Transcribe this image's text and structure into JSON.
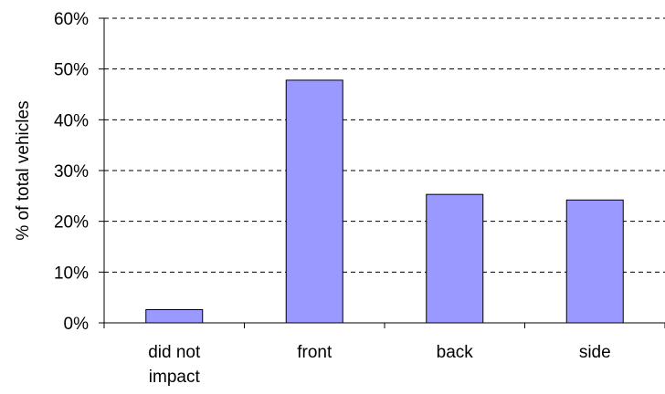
{
  "chart_data": {
    "type": "bar",
    "title": "",
    "xlabel": "",
    "ylabel": "% of total vehicles",
    "categories": [
      [
        "did not",
        "impact"
      ],
      [
        "front"
      ],
      [
        "back"
      ],
      [
        "side"
      ]
    ],
    "values": [
      2.6,
      47.8,
      25.3,
      24.2
    ],
    "ylim": [
      0,
      60
    ],
    "yticks": [
      0,
      10,
      20,
      30,
      40,
      50,
      60
    ],
    "ytick_labels": [
      "0%",
      "10%",
      "20%",
      "30%",
      "40%",
      "50%",
      "60%"
    ],
    "grid": "horizontal dashed",
    "legend": "none",
    "colors": {
      "bar": "#9999ff",
      "bar_stroke": "#000000",
      "grid": "#000000",
      "axis": "#000000"
    }
  }
}
